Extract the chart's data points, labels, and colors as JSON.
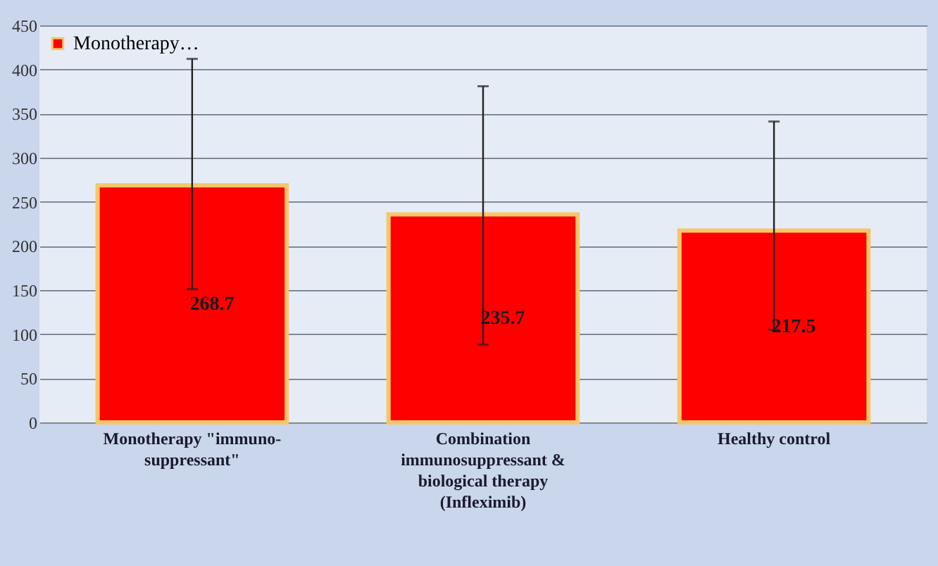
{
  "chart_data": {
    "type": "bar",
    "categories": [
      "Monotherapy \"immuno-suppressant\"",
      "Combination immunosuppressant & biological therapy (Infleximib)",
      "Healthy control"
    ],
    "series": [
      {
        "name": "Monotherapy…",
        "color": "#ff0000",
        "values": [
          268.7,
          235.7,
          217.5
        ],
        "errors": [
          [
            151,
            412
          ],
          [
            88,
            381
          ],
          [
            105,
            341
          ]
        ]
      }
    ],
    "data_labels": true,
    "ylim": [
      0,
      450
    ],
    "yticks": [
      0,
      50,
      100,
      150,
      200,
      250,
      300,
      350,
      400,
      450
    ],
    "grid": "y",
    "legend": "top left"
  }
}
